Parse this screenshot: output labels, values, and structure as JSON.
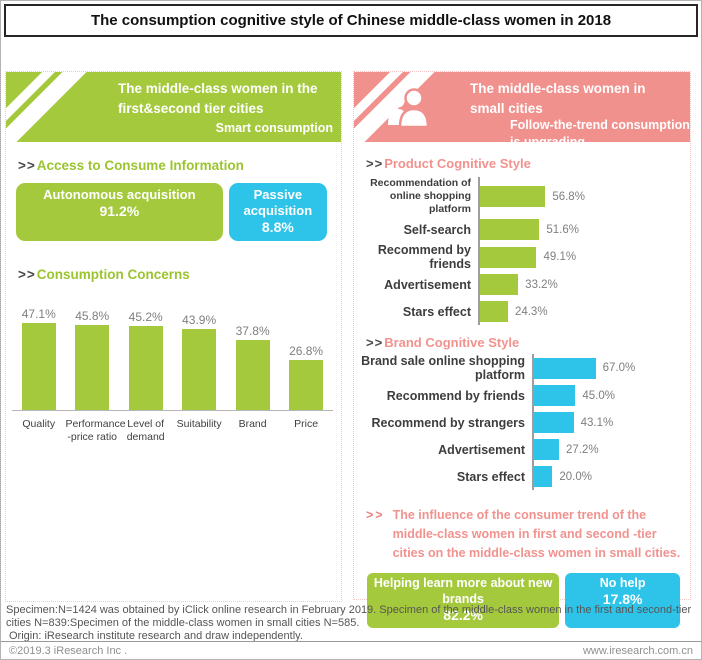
{
  "page": {
    "title": "The consumption cognitive style of Chinese middle-class women in 2018",
    "footer": {
      "specimen": "Specimen:N=1424 was obtained by iClick online research in February 2019. Specimen of the middle-class women in the first and second-tier cities N=839:Specimen of the middle-class women in small cities N=585.",
      "origin": "Origin: iResearch institute research and draw independently.",
      "copyright": "©2019.3 iResearch Inc .",
      "website": "www.iresearch.com.cn"
    }
  },
  "marker": ">>",
  "colors": {
    "green": "#a5c93c",
    "blue": "#2ec4e9",
    "pink": "#f0918e"
  },
  "left_panel": {
    "header_title": "The middle-class women in the first&second tier cities",
    "header_subtitle": "Smart consumption"
  },
  "right_panel": {
    "header_title": "The middle-class women in small cities",
    "header_subtitle": "Follow-the-trend consumption is upgrading"
  },
  "chart_data": [
    {
      "id": "access-to-consume-information",
      "type": "bar",
      "title": "Access to Consume Information",
      "categories": [
        "Autonomous acquisition",
        "Passive acquisition"
      ],
      "values": [
        91.2,
        8.8
      ],
      "value_labels": [
        "91.2%",
        "8.8%"
      ],
      "colors": [
        "#a5c93c",
        "#2ec4e9"
      ]
    },
    {
      "id": "consumption-concerns",
      "type": "bar",
      "title": "Consumption Concerns",
      "categories": [
        "Quality",
        "Performance -price ratio",
        "Level of demand",
        "Suitability",
        "Brand",
        "Price"
      ],
      "values": [
        47.1,
        45.8,
        45.2,
        43.9,
        37.8,
        26.8
      ],
      "value_labels": [
        "47.1%",
        "45.8%",
        "45.2%",
        "43.9%",
        "37.8%",
        "26.8%"
      ],
      "bar_color": "#a5c93c",
      "ylim": [
        0,
        50
      ],
      "grid": false
    },
    {
      "id": "product-cognitive-style",
      "type": "bar-horizontal",
      "title": "Product Cognitive Style",
      "categories": [
        "Recommendation of online shopping platform",
        "Self-search",
        "Recommend by friends",
        "Advertisement",
        "Stars effect"
      ],
      "values": [
        56.8,
        51.6,
        49.1,
        33.2,
        24.3
      ],
      "value_labels": [
        "56.8%",
        "51.6%",
        "49.1%",
        "33.2%",
        "24.3%"
      ],
      "bar_color": "#a5c93c",
      "xlim": [
        0,
        100
      ],
      "grid": false
    },
    {
      "id": "brand-cognitive-style",
      "type": "bar-horizontal",
      "title": "Brand Cognitive Style",
      "categories": [
        "Brand sale online shopping platform",
        "Recommend by friends",
        "Recommend by strangers",
        "Advertisement",
        "Stars effect"
      ],
      "values": [
        67.0,
        45.0,
        43.1,
        27.2,
        20.0
      ],
      "value_labels": [
        "67.0%",
        "45.0%",
        "43.1%",
        "27.2%",
        "20.0%"
      ],
      "bar_color": "#2ec4e9",
      "xlim": [
        0,
        100
      ],
      "grid": false
    },
    {
      "id": "influence-of-consumer-trend",
      "type": "bar",
      "title": "The influence of the consumer trend of the middle-class women in first and second -tier cities on the middle-class women in small cities.",
      "categories": [
        "Helping learn more about new brands",
        "No help"
      ],
      "values": [
        82.2,
        17.8
      ],
      "value_labels": [
        "82.2%",
        "17.8%"
      ],
      "colors": [
        "#a5c93c",
        "#2ec4e9"
      ]
    }
  ]
}
